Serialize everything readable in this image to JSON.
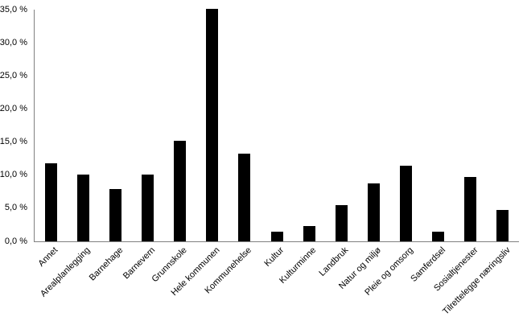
{
  "chart_data": {
    "type": "bar",
    "title": "",
    "xlabel": "",
    "ylabel": "",
    "categories": [
      "Annet",
      "Arealplanlegging",
      "Barnehage",
      "Barnevern",
      "Grunnskole",
      "Hele kommunen",
      "Kommunehelse",
      "Kultur",
      "Kulturminne",
      "Landbruk",
      "Natur og miljø",
      "Pleie og omsorg",
      "Samferdsel",
      "Sosialtjenester",
      "Tilrettelegge næringsliv"
    ],
    "values": [
      11.8,
      10.1,
      7.9,
      10.1,
      15.2,
      35.1,
      13.2,
      1.5,
      2.3,
      5.5,
      8.8,
      11.4,
      1.5,
      9.7,
      4.8
    ],
    "yticks": [
      "0,0 %",
      "5,0 %",
      "10,0 %",
      "15,0 %",
      "20,0 %",
      "25,0 %",
      "30,0 %",
      "35,0 %"
    ],
    "ytick_values": [
      0,
      5,
      10,
      15,
      20,
      25,
      30,
      35
    ],
    "ylim": [
      0,
      35
    ],
    "bar_color": "#000000",
    "axis_color": "#808080",
    "grid": false,
    "legend": false
  }
}
